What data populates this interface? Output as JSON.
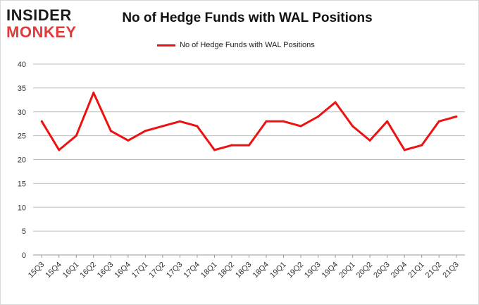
{
  "header": {
    "logo_top": "INSIDER",
    "logo_bottom": "MONKEY"
  },
  "chart_data": {
    "type": "line",
    "title": "No of Hedge Funds with WAL Positions",
    "xlabel": "",
    "ylabel": "",
    "categories": [
      "15Q3",
      "15Q4",
      "16Q1",
      "16Q2",
      "16Q3",
      "16Q4",
      "17Q1",
      "17Q2",
      "17Q3",
      "17Q4",
      "18Q1",
      "18Q2",
      "18Q3",
      "18Q4",
      "19Q1",
      "19Q2",
      "19Q3",
      "19Q4",
      "20Q1",
      "20Q2",
      "20Q3",
      "20Q4",
      "21Q1",
      "21Q2",
      "21Q3"
    ],
    "series": [
      {
        "name": "No of Hedge Funds with WAL Positions",
        "color": "#ee1111",
        "values": [
          28,
          22,
          25,
          34,
          26,
          24,
          26,
          27,
          28,
          27,
          22,
          23,
          23,
          28,
          28,
          27,
          29,
          32,
          27,
          24,
          28,
          22,
          23,
          28,
          29
        ]
      }
    ],
    "ylim": [
      0,
      40
    ],
    "yticks": [
      0,
      5,
      10,
      15,
      20,
      25,
      30,
      35,
      40
    ],
    "grid": true,
    "legend_position": "top"
  }
}
